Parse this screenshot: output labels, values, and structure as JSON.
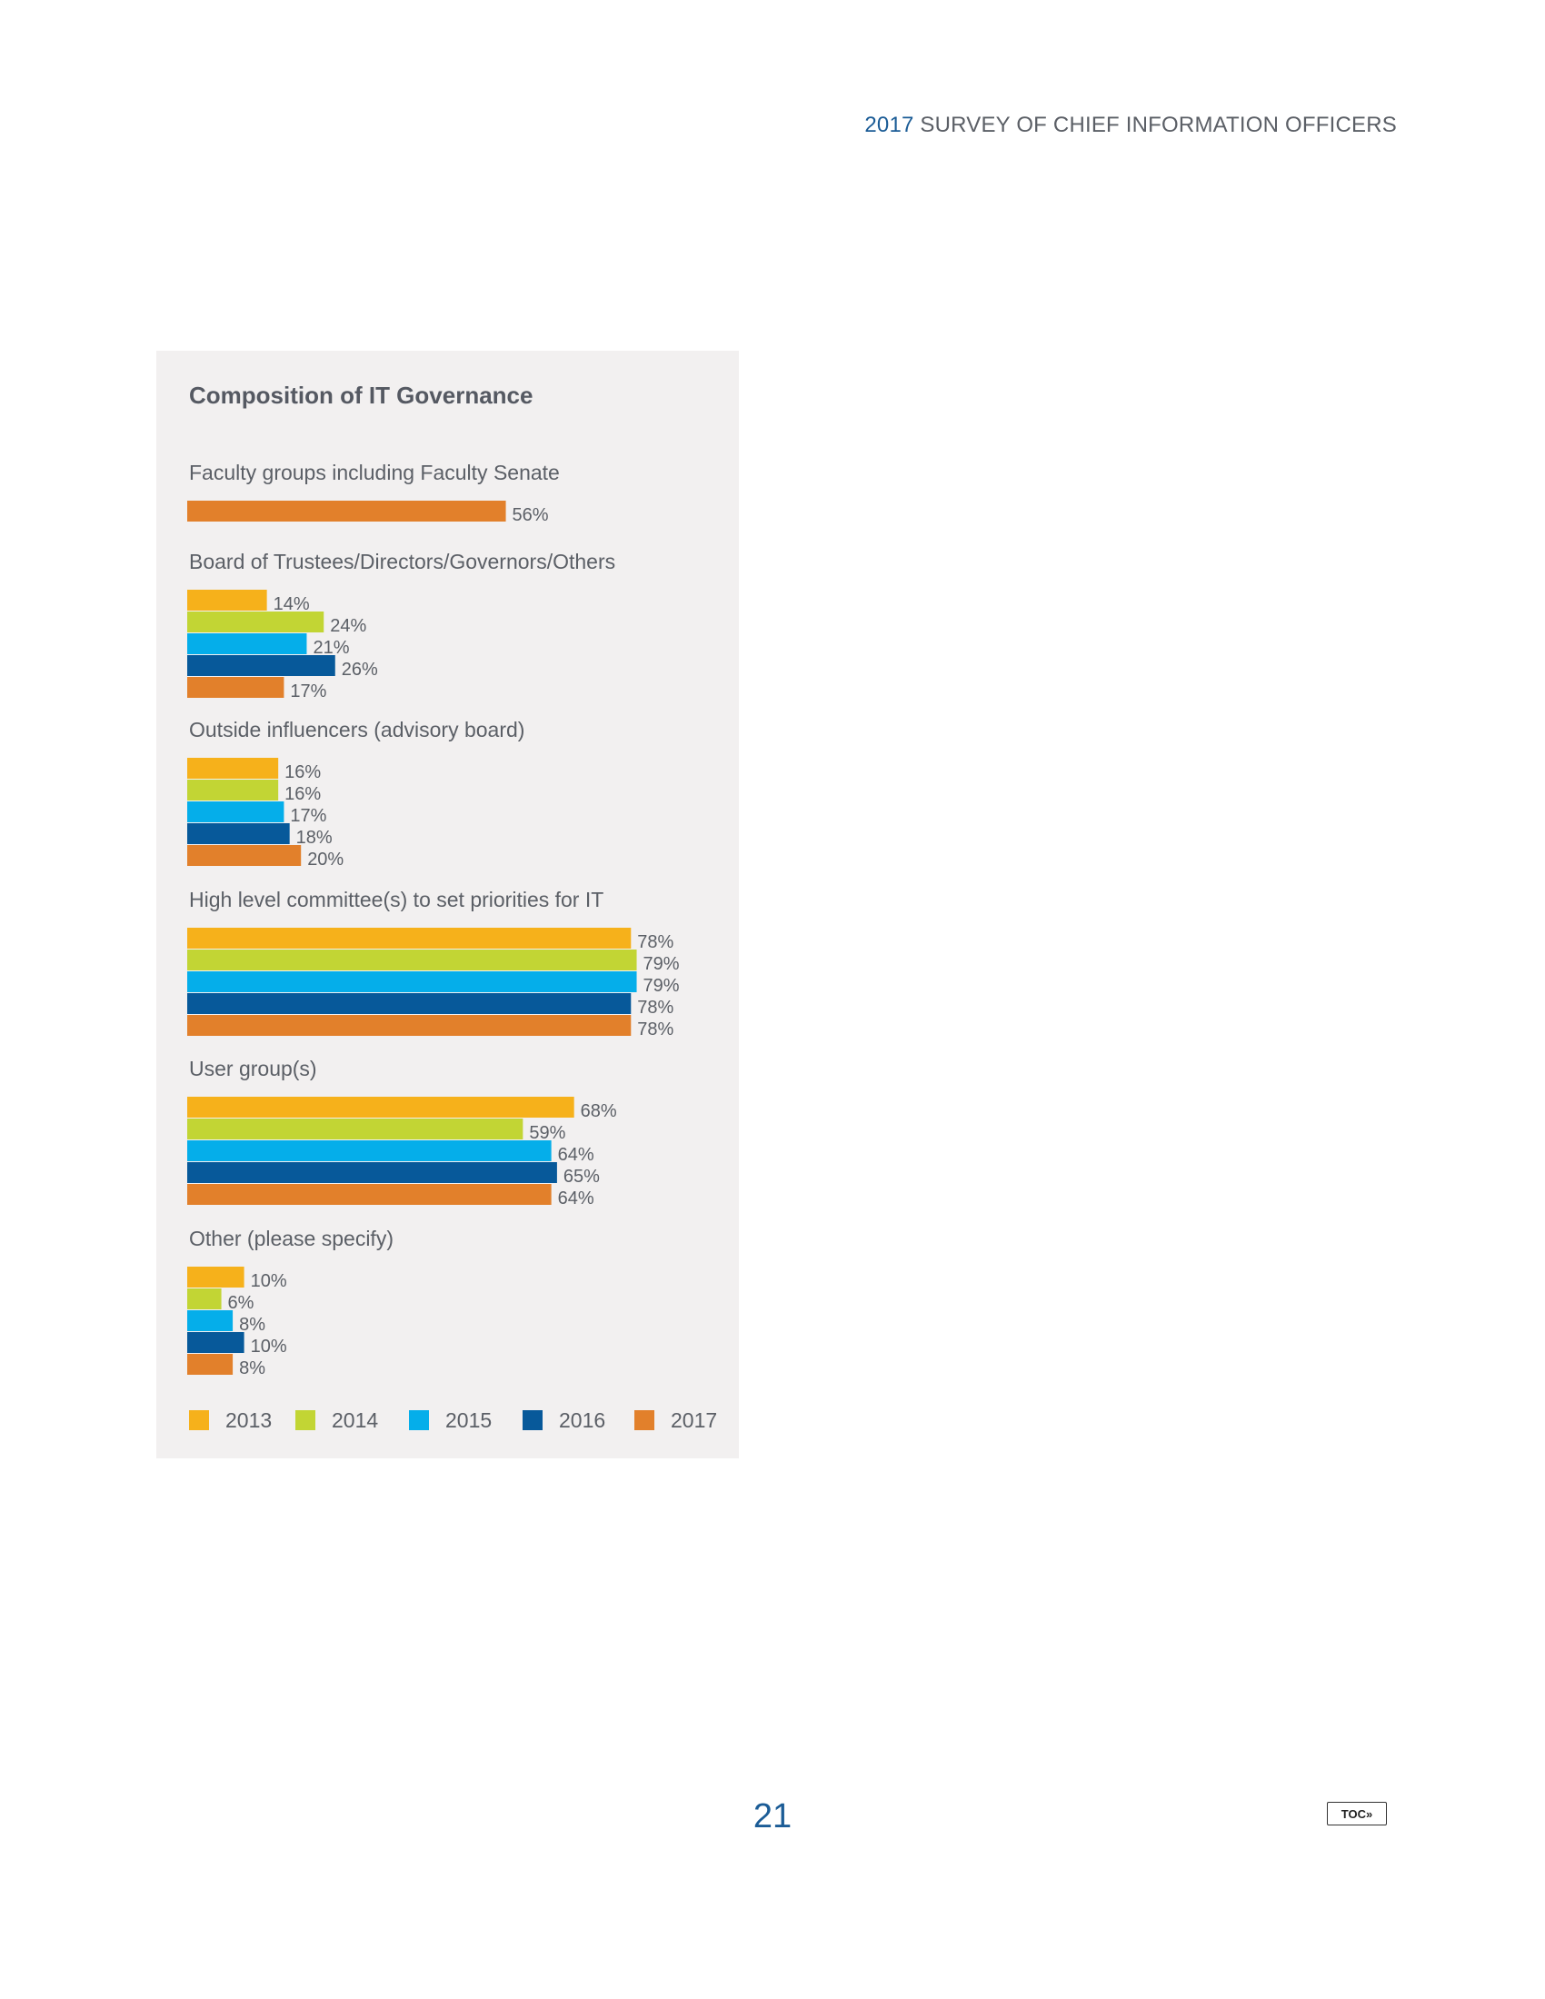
{
  "header": {
    "year": "2017",
    "title": "SURVEY OF CHIEF INFORMATION OFFICERS"
  },
  "page_number": "21",
  "toc_label": "TOC»",
  "chart_data": {
    "type": "bar",
    "orientation": "horizontal",
    "title": "Composition of IT Governance",
    "unit": "%",
    "grid": false,
    "legend_placement": "bottom",
    "series": [
      {
        "name": "2013",
        "color": "#f6b11b"
      },
      {
        "name": "2014",
        "color": "#c2d534"
      },
      {
        "name": "2015",
        "color": "#05aeea"
      },
      {
        "name": "2016",
        "color": "#07599a"
      },
      {
        "name": "2017",
        "color": "#e2802b"
      }
    ],
    "categories": [
      {
        "label": "Faculty groups including Faculty Senate",
        "values": {
          "2017": 56
        }
      },
      {
        "label": "Board of Trustees/Directors/Governors/Others",
        "values": {
          "2013": 14,
          "2014": 24,
          "2015": 21,
          "2016": 26,
          "2017": 17
        }
      },
      {
        "label": "Outside influencers (advisory board)",
        "values": {
          "2013": 16,
          "2014": 16,
          "2015": 17,
          "2016": 18,
          "2017": 20
        }
      },
      {
        "label": "High level committee(s) to set priorities for IT",
        "values": {
          "2013": 78,
          "2014": 79,
          "2015": 79,
          "2016": 78,
          "2017": 78
        }
      },
      {
        "label": "User group(s)",
        "values": {
          "2013": 68,
          "2014": 59,
          "2015": 64,
          "2016": 65,
          "2017": 64
        }
      },
      {
        "label": "Other (please specify)",
        "values": {
          "2013": 10,
          "2014": 6,
          "2015": 8,
          "2016": 10,
          "2017": 8
        }
      }
    ]
  }
}
